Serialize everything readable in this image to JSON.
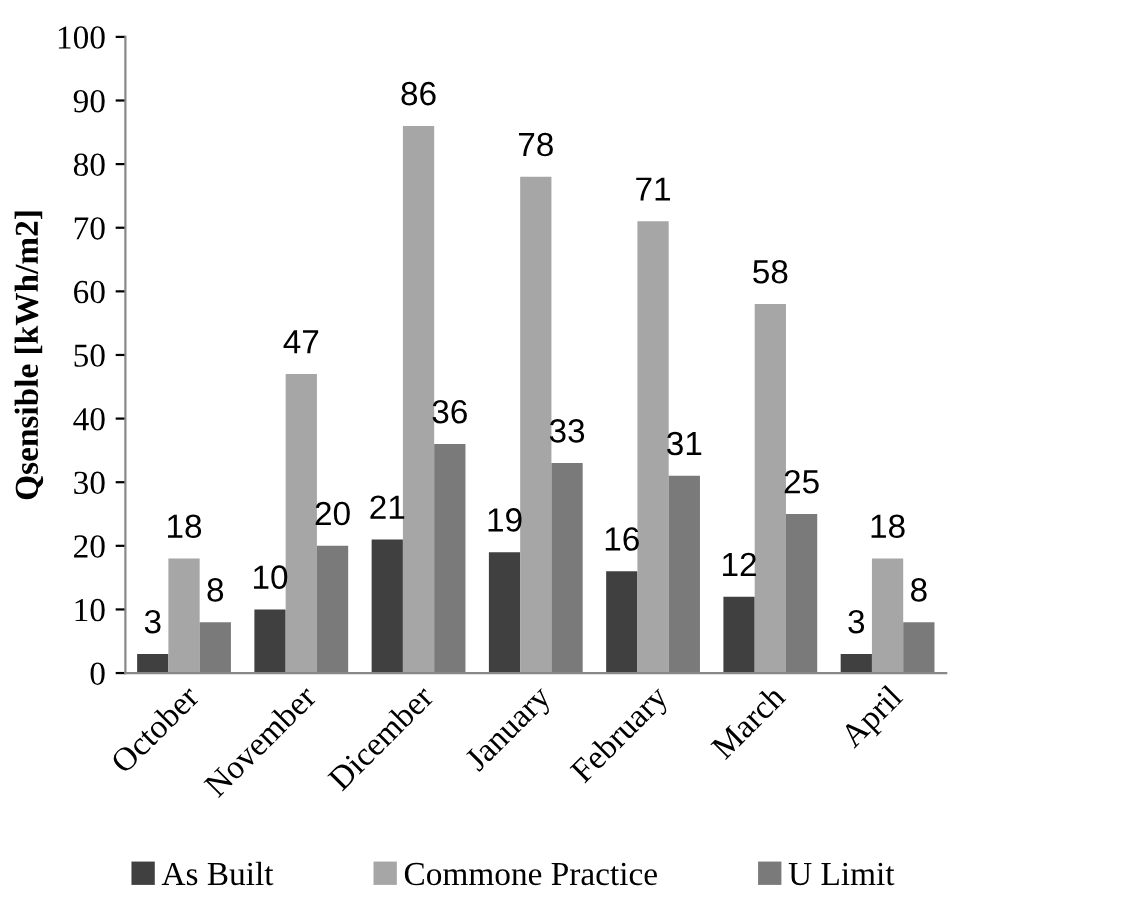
{
  "chart_data": {
    "type": "bar",
    "ylabel": "Qsensible [kWh/m2]",
    "categories": [
      "October",
      "November",
      "Dicember",
      "January",
      "February",
      "March",
      "April"
    ],
    "series": [
      {
        "name": "As Built",
        "color": "#404040",
        "values": [
          3,
          10,
          21,
          19,
          16,
          12,
          3
        ]
      },
      {
        "name": "Commone Practice",
        "color": "#a6a6a6",
        "values": [
          18,
          47,
          86,
          78,
          71,
          58,
          18
        ]
      },
      {
        "name": "U Limit",
        "color": "#7a7a7a",
        "values": [
          8,
          20,
          36,
          33,
          31,
          25,
          8
        ]
      }
    ],
    "ylim": [
      0,
      100
    ],
    "yticks": [
      0,
      10,
      20,
      30,
      40,
      50,
      60,
      70,
      80,
      90,
      100
    ],
    "grid": false,
    "legend": "bottom",
    "data_labels": true
  }
}
